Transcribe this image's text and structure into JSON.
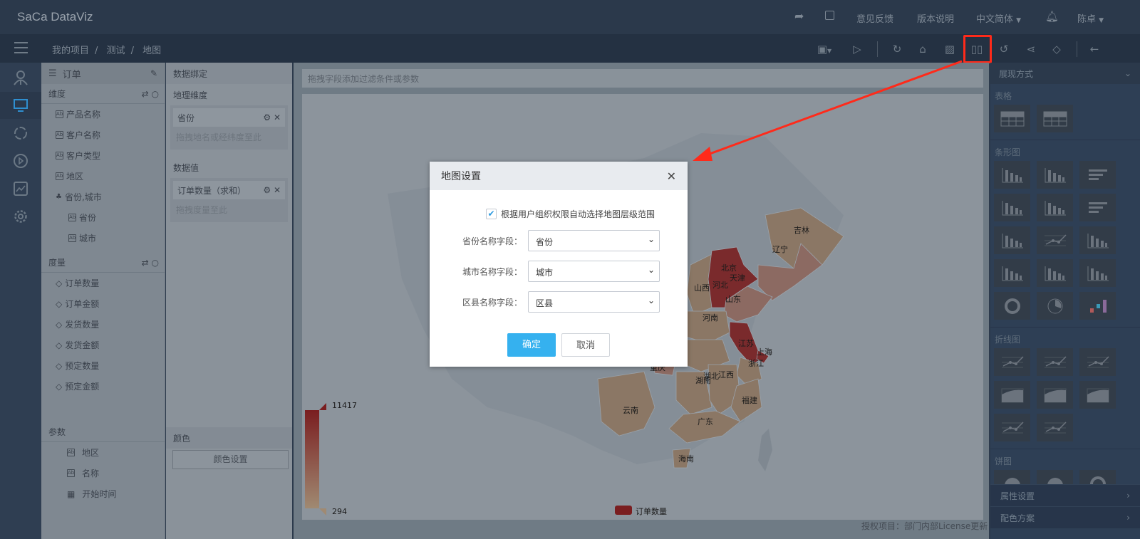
{
  "app": {
    "logo": "SaCa DataViz"
  },
  "topbar": {
    "links": [
      "意见反馈",
      "版本说明",
      "中文简体",
      "陈卓"
    ],
    "icons": [
      "share-icon",
      "external-link-icon",
      "bell-icon"
    ]
  },
  "breadcrumb": [
    "我的项目",
    "测试",
    "地图"
  ],
  "toolbar": {
    "icons": [
      "save-icon",
      "play-icon",
      "refresh-data-icon",
      "brush-icon",
      "image-icon",
      "map-icon",
      "undo-icon",
      "share-nodes-icon",
      "tag-icon",
      "back-arrow-icon"
    ],
    "highlighted": "map-icon",
    "highlight_color": "#ff2a1a"
  },
  "rail": {
    "items": [
      "user-icon",
      "monitor-icon",
      "cycle-icon",
      "play-circle-icon",
      "chart-line-icon",
      "gear-icon"
    ],
    "active": "monitor-icon",
    "active_color": "#2f8fd0"
  },
  "left_panel": {
    "dataset": "订单",
    "dimensions_label": "维度",
    "dimensions": [
      "产品名称",
      "客户名称",
      "客户类型",
      "地区"
    ],
    "hierarchy": {
      "label": "省份,城市",
      "children": [
        "省份",
        "城市"
      ]
    },
    "measures_label": "度量",
    "measures": [
      "订单数量",
      "订单金额",
      "发货数量",
      "发货金额",
      "预定数量",
      "预定金额"
    ],
    "params_label": "参数",
    "params": [
      {
        "label": "地区",
        "icon": "text-field-icon"
      },
      {
        "label": "名称",
        "icon": "text-field-icon"
      },
      {
        "label": "开始时间",
        "icon": "calendar-icon"
      }
    ]
  },
  "binding_panel": {
    "title": "数据绑定",
    "geo_label": "地理维度",
    "geo_chip": "省份",
    "geo_placeholder": "拖拽地名或经纬度至此",
    "value_label": "数据值",
    "value_chip": "订单数量（求和）",
    "value_placeholder": "拖拽度量至此",
    "color_label": "颜色",
    "color_button": "颜色设置"
  },
  "main": {
    "filter_placeholder": "拖拽字段添加过滤条件或参数",
    "license": "授权项目：部门内部License更新"
  },
  "map": {
    "visual_max": 11417,
    "visual_min": 294,
    "color_high": "#7a1e20",
    "color_low": "#a08a72",
    "legend": "订单数量",
    "provinces": [
      {
        "name": "吉林",
        "level": "low"
      },
      {
        "name": "辽宁",
        "level": "mid"
      },
      {
        "name": "北京",
        "level": "high"
      },
      {
        "name": "天津",
        "level": "high"
      },
      {
        "name": "山西",
        "level": "low"
      },
      {
        "name": "河北",
        "level": "high"
      },
      {
        "name": "山东",
        "level": "mid"
      },
      {
        "name": "河南",
        "level": "low"
      },
      {
        "name": "江苏",
        "level": "high"
      },
      {
        "name": "上海",
        "level": "high"
      },
      {
        "name": "浙江",
        "level": "low"
      },
      {
        "name": "湖北",
        "level": "low"
      },
      {
        "name": "重庆",
        "level": "mid"
      },
      {
        "name": "湖南",
        "level": "low"
      },
      {
        "name": "江西",
        "level": "low"
      },
      {
        "name": "福建",
        "level": "low"
      },
      {
        "name": "云南",
        "level": "low"
      },
      {
        "name": "广东",
        "level": "low"
      },
      {
        "name": "海南",
        "level": "low"
      }
    ]
  },
  "right_panel": {
    "title": "展现方式",
    "groups": [
      {
        "label": "表格",
        "tiles": [
          "table",
          "crosstable"
        ]
      },
      {
        "label": "条形图",
        "tiles": [
          "bar",
          "bar-axis",
          "hbar",
          "group-bar",
          "group-bar-axis",
          "hbar-group",
          "stack-bar",
          "stack-bar-line",
          "bar-thin",
          "waterfall",
          "bar-3d",
          "cylinder",
          "radial-bar",
          "polar-bar",
          "bar-color"
        ]
      },
      {
        "label": "折线图",
        "tiles": [
          "line",
          "line-multi",
          "line-axis",
          "area",
          "area-smooth",
          "area-axis",
          "slope",
          "step-line"
        ]
      },
      {
        "label": "饼图",
        "tiles": [
          "pie",
          "pie-part",
          "donut"
        ]
      }
    ],
    "footer": [
      "属性设置",
      "配色方案"
    ]
  },
  "dialog": {
    "title": "地图设置",
    "checkbox_label": "根据用户组织权限自动选择地图层级范围",
    "checkbox_checked": true,
    "fields": [
      {
        "label": "省份名称字段：",
        "value": "省份"
      },
      {
        "label": "城市名称字段：",
        "value": "城市"
      },
      {
        "label": "区县名称字段：",
        "value": "区县"
      }
    ],
    "ok": "确定",
    "cancel": "取消",
    "accent": "#35b1ef"
  }
}
